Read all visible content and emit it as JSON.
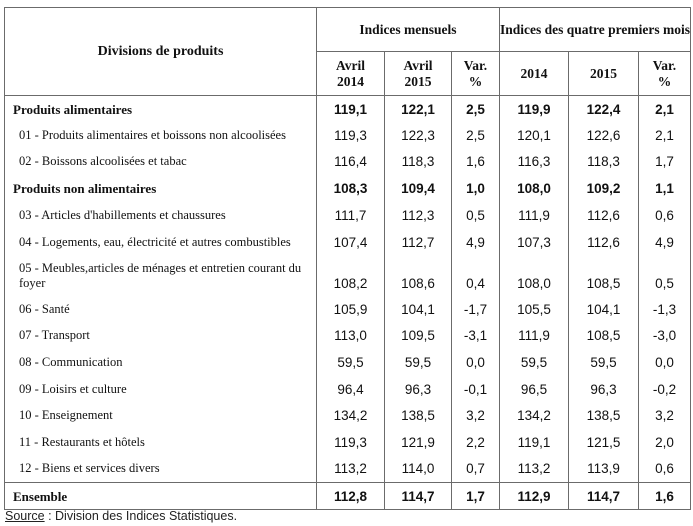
{
  "table": {
    "header": {
      "divisions": "Divisions de produits",
      "group_monthly": "Indices mensuels",
      "group_four_months": "Indices des quatre premiers mois",
      "cols": [
        "Avril 2014",
        "Avril 2015",
        "Var. %",
        "2014",
        "2015",
        "Var. %"
      ],
      "col_lines": [
        [
          "Avril",
          "2014"
        ],
        [
          "Avril",
          "2015"
        ],
        [
          "Var.",
          "%"
        ],
        [
          "2014"
        ],
        [
          "2015"
        ],
        [
          "Var.",
          "%"
        ]
      ]
    },
    "rows": [
      {
        "label": "Produits alimentaires",
        "type": "group",
        "values": [
          "119,1",
          "122,1",
          "2,5",
          "119,9",
          "122,4",
          "2,1"
        ]
      },
      {
        "label": "01 - Produits alimentaires et boissons non alcoolisées",
        "type": "item",
        "values": [
          "119,3",
          "122,3",
          "2,5",
          "120,1",
          "122,6",
          "2,1"
        ]
      },
      {
        "label": "02 - Boissons alcoolisées et tabac",
        "type": "item",
        "values": [
          "116,4",
          "118,3",
          "1,6",
          "116,3",
          "118,3",
          "1,7"
        ]
      },
      {
        "label": "Produits non alimentaires",
        "type": "group",
        "values": [
          "108,3",
          "109,4",
          "1,0",
          "108,0",
          "109,2",
          "1,1"
        ]
      },
      {
        "label": "03 - Articles d'habillements et chaussures",
        "type": "item",
        "values": [
          "111,7",
          "112,3",
          "0,5",
          "111,9",
          "112,6",
          "0,6"
        ]
      },
      {
        "label": "04 - Logements, eau, électricité et autres combustibles",
        "type": "item",
        "values": [
          "107,4",
          "112,7",
          "4,9",
          "107,3",
          "112,6",
          "4,9"
        ]
      },
      {
        "label": "05 - Meubles,articles de ménages et entretien courant du foyer",
        "type": "item",
        "values": [
          "108,2",
          "108,6",
          "0,4",
          "108,0",
          "108,5",
          "0,5"
        ]
      },
      {
        "label": "06 - Santé",
        "type": "item",
        "values": [
          "105,9",
          "104,1",
          "-1,7",
          "105,5",
          "104,1",
          "-1,3"
        ]
      },
      {
        "label": "07 - Transport",
        "type": "item",
        "values": [
          "113,0",
          "109,5",
          "-3,1",
          "111,9",
          "108,5",
          "-3,0"
        ]
      },
      {
        "label": "08 - Communication",
        "type": "item",
        "values": [
          "59,5",
          "59,5",
          "0,0",
          "59,5",
          "59,5",
          "0,0"
        ]
      },
      {
        "label": "09 - Loisirs et culture",
        "type": "item",
        "values": [
          "96,4",
          "96,3",
          "-0,1",
          "96,5",
          "96,3",
          "-0,2"
        ]
      },
      {
        "label": "10 - Enseignement",
        "type": "item",
        "values": [
          "134,2",
          "138,5",
          "3,2",
          "134,2",
          "138,5",
          "3,2"
        ]
      },
      {
        "label": "11 - Restaurants et hôtels",
        "type": "item",
        "values": [
          "119,3",
          "121,9",
          "2,2",
          "119,1",
          "121,5",
          "2,0"
        ]
      },
      {
        "label": "12 - Biens et services divers",
        "type": "item",
        "values": [
          "113,2",
          "114,0",
          "0,7",
          "113,2",
          "113,9",
          "0,6"
        ]
      },
      {
        "label": "Ensemble",
        "type": "total",
        "values": [
          "112,8",
          "114,7",
          "1,7",
          "112,9",
          "114,7",
          "1,6"
        ]
      }
    ]
  },
  "source": {
    "label": "Source",
    "separator": " : ",
    "text": "Division des Indices Statistiques."
  }
}
